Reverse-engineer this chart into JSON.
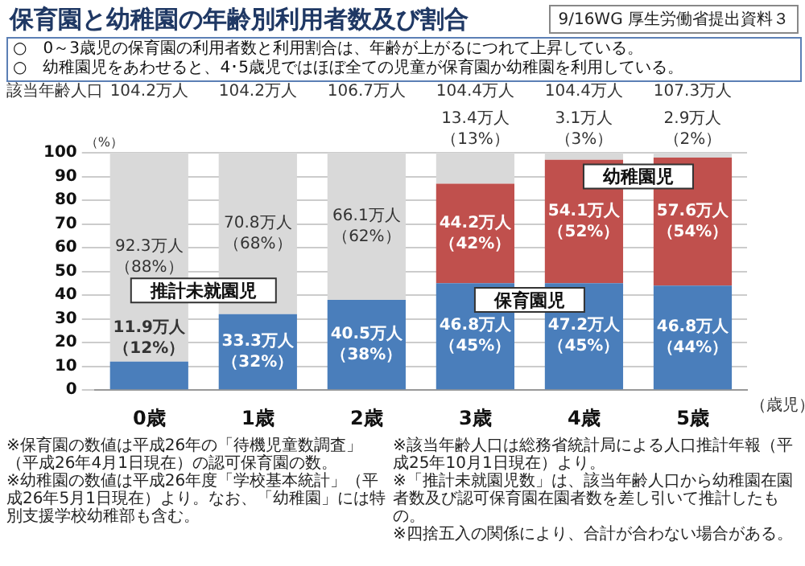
{
  "chart_data": {
    "type": "bar",
    "title": "保育園と幼稚園の年齢別利用者数及び割合",
    "subtitle": "○　0～3歳児の保育園の利用者数と利用割合は、年齢が上がるにつれて上昇している。\n○　幼稚園児をあわせると、4･5歳児ではほぼ全ての児童が保育園か幼稚園を利用している。",
    "xlabel": "（歳児）",
    "ylabel": "（%）",
    "categories": [
      "0歳",
      "1歳",
      "2歳",
      "3歳",
      "4歳",
      "5歳"
    ],
    "series": [
      {
        "name": "保育園児",
        "color": "#4a7ebb",
        "values": [
          12,
          32,
          38,
          45,
          45,
          44
        ],
        "value_labels": [
          "11.9万人（12%）",
          "33.3万人（32%）",
          "40.5万人（38%）",
          "46.8万人（45%）",
          "47.2万人（45%）",
          "46.8万人（44%）"
        ]
      },
      {
        "name": "幼稚園児",
        "color": "#c0504d",
        "values": [
          null,
          null,
          null,
          42,
          52,
          54
        ],
        "value_labels": [
          null,
          null,
          null,
          "44.2万人（42%）",
          "54.1万人（52%）",
          "57.6万人（54%）"
        ]
      },
      {
        "name": "推計未就園児",
        "color": "#d9d9d9",
        "values": [
          88,
          68,
          62,
          13,
          3,
          2
        ],
        "value_labels": [
          "92.3万人（88%）",
          "70.8万人（68%）",
          "66.1万人（62%）",
          "13.4万人（13%）",
          "3.1万人（3%）",
          "2.9万人（2%）"
        ]
      }
    ],
    "stacked": true,
    "ylim": [
      0,
      100
    ],
    "yticks": [
      0,
      10,
      20,
      30,
      40,
      50,
      60,
      70,
      80,
      90,
      100
    ],
    "grid": "y",
    "annotations": [
      "9/16WG 厚生労働省提出資料３",
      "該当年齢人口",
      "104.2万人",
      "104.2万人",
      "106.7万人",
      "104.4万人",
      "104.4万人",
      "107.3万人",
      "※保育園の数値は平成26年の「待機児童数調査」（平成26年4月1日現在）の認可保育園の数。",
      "※幼稚園の数値は平成26年度「学校基本統計」（平成26年5月1日現在）より。なお、「幼稚園」には特別支援学校幼稚部も含む。",
      "※該当年齢人口は総務省統計局による人口推計年報（平成25年10月1日現在）より。",
      "※「推計未就園児数」は、該当年齢人口から幼稚園在園者数及び認可保育園在園者数を差し引いて推計したもの。",
      "※四捨五入の関係により、合計が合わない場合がある。"
    ]
  }
}
